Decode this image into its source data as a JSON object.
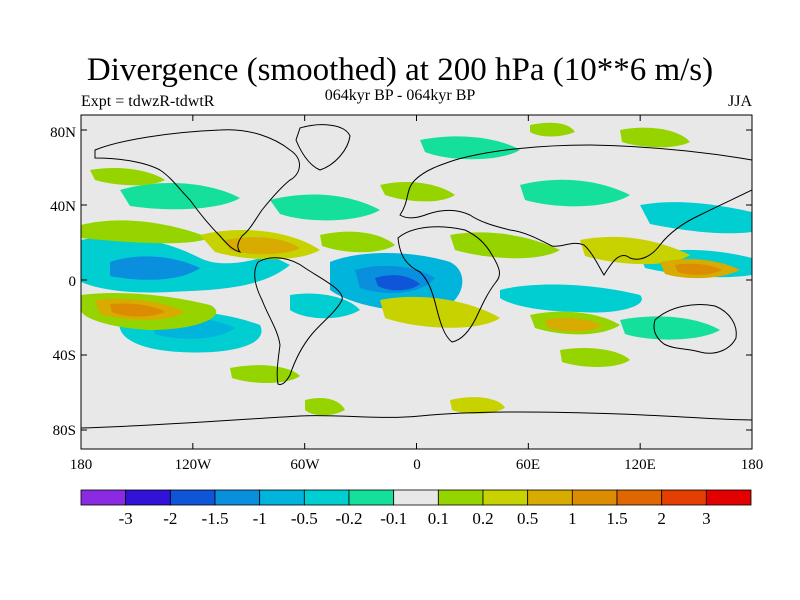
{
  "header": {
    "title": "Divergence (smoothed) at 200 hPa (10**6 m/s)",
    "expt": "Expt = tdwzR-tdwtR",
    "subtitle": "064kyr BP - 064kyr BP",
    "season": "JJA"
  },
  "axes": {
    "lat_labels": [
      "80N",
      "40N",
      "0",
      "40S",
      "80S"
    ],
    "lon_labels": [
      "180",
      "120W",
      "60W",
      "0",
      "60E",
      "120E",
      "180"
    ]
  },
  "colorbar": {
    "colors": [
      "#8a2be2",
      "#3212d6",
      "#0f55d8",
      "#0a8ede",
      "#00b4dc",
      "#00ced1",
      "#14e09b",
      "#e8e8e8",
      "#96d400",
      "#c8d200",
      "#d7ab00",
      "#dc8c00",
      "#e06700",
      "#e43e00",
      "#e20000"
    ],
    "labels": [
      "-3",
      "-2",
      "-1.5",
      "-1",
      "-0.5",
      "-0.2",
      "-0.1",
      "0.1",
      "0.2",
      "0.5",
      "1",
      "1.5",
      "2",
      "3"
    ]
  }
}
